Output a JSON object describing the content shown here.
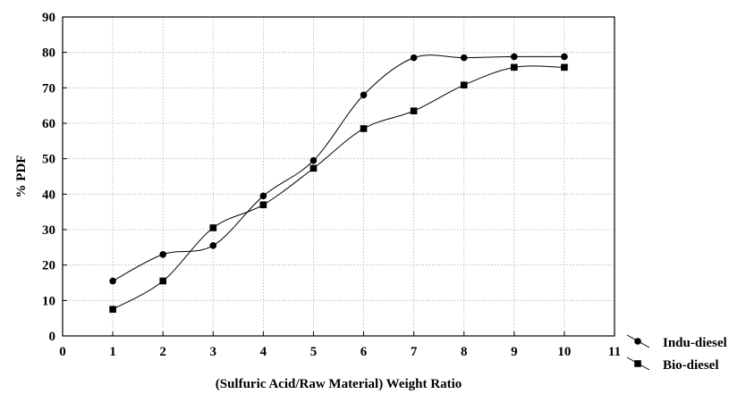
{
  "chart_data": {
    "type": "scatter",
    "xlabel": "(Sulfuric Acid/Raw Material) Weight Ratio",
    "ylabel": "% PDF",
    "xlim": [
      0,
      11
    ],
    "ylim": [
      0,
      90
    ],
    "xticks": [
      "0",
      "1",
      "2",
      "3",
      "4",
      "5",
      "6",
      "7",
      "8",
      "9",
      "10",
      "11"
    ],
    "yticks": [
      "0",
      "10",
      "20",
      "30",
      "40",
      "50",
      "60",
      "70",
      "80",
      "90"
    ],
    "grid": true,
    "legend_position": "bottom-right, outside plot",
    "series": [
      {
        "name": "Indu-diesel",
        "marker": "circle",
        "color": "#000000",
        "x": [
          1,
          2,
          3,
          4,
          5,
          6,
          7,
          8,
          9,
          10
        ],
        "y": [
          15.5,
          23,
          25.5,
          39.5,
          49.5,
          68,
          78.5,
          78.5,
          78.8,
          78.8
        ]
      },
      {
        "name": "Bio-diesel",
        "marker": "square",
        "color": "#000000",
        "x": [
          1,
          2,
          3,
          4,
          5,
          6,
          7,
          8,
          9,
          10
        ],
        "y": [
          7.5,
          15.5,
          30.5,
          37,
          47.3,
          58.5,
          63.5,
          70.8,
          75.8,
          75.8
        ]
      }
    ]
  }
}
